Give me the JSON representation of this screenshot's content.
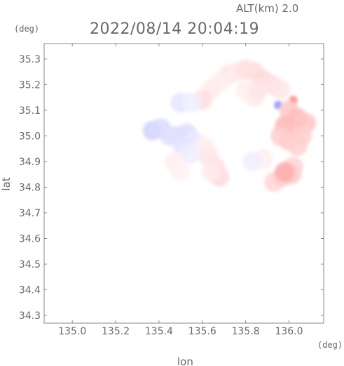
{
  "header": {
    "altitude_label": "ALT(km) 2.0",
    "timestamp": "2022/08/14 20:04:19"
  },
  "chart_data": {
    "type": "heatmap",
    "xlabel": "lon",
    "ylabel": "lat",
    "x_unit": "(deg)",
    "y_unit": "(deg)",
    "xlim": [
      134.87,
      136.16
    ],
    "ylim": [
      34.27,
      35.36
    ],
    "x_ticks": [
      135.0,
      135.2,
      135.4,
      135.6,
      135.8,
      136.0
    ],
    "x_tick_labels": [
      "135.0",
      "135.2",
      "135.4",
      "135.6",
      "135.8",
      "136.0"
    ],
    "y_ticks": [
      34.3,
      34.4,
      34.5,
      34.6,
      34.7,
      34.8,
      34.9,
      35.0,
      35.1,
      35.2,
      35.3
    ],
    "y_tick_labels": [
      "34.3",
      "34.4",
      "34.5",
      "34.6",
      "34.7",
      "34.8",
      "34.9",
      "35.0",
      "35.1",
      "35.2",
      "35.3"
    ],
    "grid": false,
    "colors": {
      "negative": "#6a6aff",
      "neutral": "#ffffff",
      "positive": "#ff5a5a",
      "frame": "#888888"
    },
    "cells": [
      {
        "lon": 135.72,
        "lat": 35.24,
        "v": 0.15
      },
      {
        "lon": 135.76,
        "lat": 35.25,
        "v": 0.12
      },
      {
        "lon": 135.8,
        "lat": 35.26,
        "v": 0.18
      },
      {
        "lon": 135.84,
        "lat": 35.25,
        "v": 0.2
      },
      {
        "lon": 135.88,
        "lat": 35.22,
        "v": 0.22
      },
      {
        "lon": 135.92,
        "lat": 35.2,
        "v": 0.18
      },
      {
        "lon": 135.96,
        "lat": 35.18,
        "v": 0.15
      },
      {
        "lon": 135.68,
        "lat": 35.21,
        "v": 0.1
      },
      {
        "lon": 135.64,
        "lat": 35.18,
        "v": 0.12
      },
      {
        "lon": 135.6,
        "lat": 35.14,
        "v": 0.2
      },
      {
        "lon": 135.84,
        "lat": 35.15,
        "v": 0.12
      },
      {
        "lon": 135.8,
        "lat": 35.18,
        "v": 0.1
      },
      {
        "lon": 135.86,
        "lat": 35.18,
        "v": 0.16
      },
      {
        "lon": 135.5,
        "lat": 35.13,
        "v": -0.18
      },
      {
        "lon": 135.55,
        "lat": 35.13,
        "v": -0.1
      },
      {
        "lon": 136.02,
        "lat": 35.14,
        "v": 0.75
      },
      {
        "lon": 135.95,
        "lat": 35.12,
        "v": -0.75
      },
      {
        "lon": 136.0,
        "lat": 35.1,
        "v": 0.35
      },
      {
        "lon": 136.04,
        "lat": 35.07,
        "v": 0.4
      },
      {
        "lon": 136.08,
        "lat": 35.05,
        "v": 0.35
      },
      {
        "lon": 135.98,
        "lat": 35.04,
        "v": 0.45
      },
      {
        "lon": 136.02,
        "lat": 35.02,
        "v": 0.38
      },
      {
        "lon": 136.06,
        "lat": 35.0,
        "v": 0.3
      },
      {
        "lon": 136.0,
        "lat": 34.98,
        "v": 0.32
      },
      {
        "lon": 136.04,
        "lat": 34.96,
        "v": 0.28
      },
      {
        "lon": 135.96,
        "lat": 35.0,
        "v": 0.3
      },
      {
        "lon": 135.37,
        "lat": 35.02,
        "v": -0.3
      },
      {
        "lon": 135.41,
        "lat": 35.03,
        "v": -0.25
      },
      {
        "lon": 135.45,
        "lat": 35.0,
        "v": -0.22
      },
      {
        "lon": 135.49,
        "lat": 35.0,
        "v": -0.2
      },
      {
        "lon": 135.53,
        "lat": 35.01,
        "v": -0.22
      },
      {
        "lon": 135.56,
        "lat": 34.98,
        "v": -0.15
      },
      {
        "lon": 135.51,
        "lat": 34.96,
        "v": -0.18
      },
      {
        "lon": 135.54,
        "lat": 34.93,
        "v": -0.12
      },
      {
        "lon": 135.58,
        "lat": 34.94,
        "v": -0.1
      },
      {
        "lon": 135.61,
        "lat": 34.96,
        "v": 0.1
      },
      {
        "lon": 135.63,
        "lat": 34.92,
        "v": 0.15
      },
      {
        "lon": 135.66,
        "lat": 34.88,
        "v": 0.18
      },
      {
        "lon": 135.68,
        "lat": 34.84,
        "v": 0.22
      },
      {
        "lon": 135.64,
        "lat": 34.86,
        "v": 0.12
      },
      {
        "lon": 135.47,
        "lat": 34.9,
        "v": 0.1
      },
      {
        "lon": 135.5,
        "lat": 34.86,
        "v": 0.08
      },
      {
        "lon": 135.88,
        "lat": 34.91,
        "v": 0.1
      },
      {
        "lon": 135.93,
        "lat": 34.82,
        "v": 0.25
      },
      {
        "lon": 135.97,
        "lat": 34.84,
        "v": 0.3
      },
      {
        "lon": 136.01,
        "lat": 34.85,
        "v": 0.35
      },
      {
        "lon": 136.02,
        "lat": 34.88,
        "v": 0.28
      },
      {
        "lon": 135.98,
        "lat": 34.86,
        "v": 0.5
      },
      {
        "lon": 135.83,
        "lat": 34.9,
        "v": -0.1
      }
    ]
  }
}
